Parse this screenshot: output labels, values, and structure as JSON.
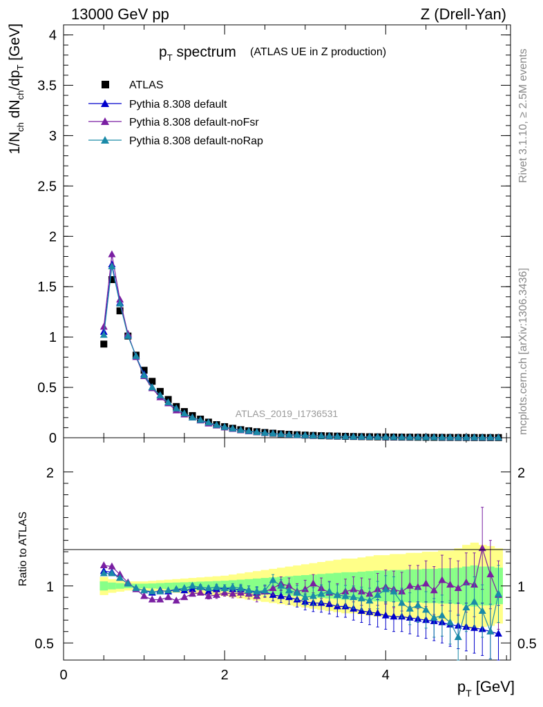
{
  "header": {
    "energy": "13000 GeV pp",
    "process": "Z (Drell-Yan)"
  },
  "side": {
    "rivet": "Rivet 3.1.10, ≥ 2.5M events",
    "source": "mcplots.cern.ch [arXiv:1306.3436]"
  },
  "analysis_id": "ATLAS_2019_I1736531",
  "colors": {
    "atlas": "#000000",
    "default": "#0000cc",
    "noFsr": "#7a1fa2",
    "noRap": "#1a8aa8",
    "band_outer": "#ffff88",
    "band_inner": "#88ff88"
  },
  "chart_data": [
    {
      "type": "scatter",
      "panel": "main",
      "title": "p_T spectrum",
      "subtitle": "(ATLAS UE in Z production)",
      "xlabel": "p_T [GeV]",
      "ylabel": "1/N_ch dN_ch/dp_T [GeV]",
      "xlim": [
        0,
        5.55
      ],
      "ylim": [
        0,
        4.1
      ],
      "yticks": [
        0,
        0.5,
        1,
        1.5,
        2,
        2.5,
        3,
        3.5,
        4
      ],
      "xticks": [
        0,
        2,
        4
      ],
      "legend_position": "top-left",
      "x": [
        0.5,
        0.6,
        0.7,
        0.8,
        0.9,
        1.0,
        1.1,
        1.2,
        1.3,
        1.4,
        1.5,
        1.6,
        1.7,
        1.8,
        1.9,
        2.0,
        2.1,
        2.2,
        2.3,
        2.4,
        2.5,
        2.6,
        2.7,
        2.8,
        2.9,
        3.0,
        3.1,
        3.2,
        3.3,
        3.4,
        3.5,
        3.6,
        3.7,
        3.8,
        3.9,
        4.0,
        4.1,
        4.2,
        4.3,
        4.4,
        4.5,
        4.6,
        4.7,
        4.8,
        4.9,
        5.0,
        5.1,
        5.2,
        5.3,
        5.4
      ],
      "series": [
        {
          "name": "ATLAS",
          "values": [
            0.93,
            1.57,
            1.26,
            1.01,
            0.82,
            0.67,
            0.56,
            0.46,
            0.38,
            0.31,
            0.26,
            0.22,
            0.185,
            0.155,
            0.13,
            0.11,
            0.094,
            0.08,
            0.069,
            0.06,
            0.052,
            0.045,
            0.039,
            0.034,
            0.03,
            0.026,
            0.023,
            0.02,
            0.018,
            0.016,
            0.014,
            0.0125,
            0.011,
            0.0098,
            0.0088,
            0.0078,
            0.007,
            0.0062,
            0.0056,
            0.005,
            0.0045,
            0.004,
            0.0036,
            0.0032,
            0.0029,
            0.0026,
            0.0023,
            0.0021,
            0.0019,
            0.0017
          ]
        },
        {
          "name": "Pythia 8.308 default",
          "values": [
            1.05,
            1.72,
            1.34,
            1.02,
            0.81,
            0.63,
            0.5,
            0.42,
            0.35,
            0.29,
            0.24,
            0.2,
            0.175,
            0.15,
            0.125,
            0.105,
            0.09,
            0.076,
            0.065,
            0.055,
            0.047,
            0.041,
            0.035,
            0.03,
            0.026,
            0.023,
            0.02,
            0.017,
            0.015,
            0.013,
            0.011,
            0.0098,
            0.0086,
            0.0076,
            0.0067,
            0.006,
            0.0053,
            0.0047,
            0.0042,
            0.0038,
            0.0034,
            0.003,
            0.0027,
            0.0024,
            0.0021,
            0.0019,
            0.0017,
            0.0015,
            0.0013,
            0.0012
          ]
        },
        {
          "name": "Pythia 8.308 default-noFsr",
          "values": [
            1.1,
            1.82,
            1.37,
            1.03,
            0.8,
            0.61,
            0.49,
            0.4,
            0.34,
            0.27,
            0.23,
            0.2,
            0.17,
            0.14,
            0.12,
            0.1,
            0.086,
            0.073,
            0.062,
            0.053,
            0.046,
            0.04,
            0.034,
            0.029,
            0.025,
            0.022,
            0.019,
            0.017,
            0.015,
            0.013,
            0.011,
            0.0097,
            0.0085,
            0.0075,
            0.0066,
            0.0059,
            0.0052,
            0.0046,
            0.0041,
            0.0037,
            0.0033,
            0.003,
            0.0027,
            0.0024,
            0.0021,
            0.0019,
            0.0017,
            0.0015,
            0.0014,
            0.0012
          ]
        },
        {
          "name": "Pythia 8.308 default-noRap",
          "values": [
            1.02,
            1.7,
            1.33,
            1.01,
            0.81,
            0.62,
            0.5,
            0.42,
            0.35,
            0.29,
            0.24,
            0.2,
            0.175,
            0.15,
            0.125,
            0.105,
            0.09,
            0.076,
            0.065,
            0.055,
            0.047,
            0.041,
            0.035,
            0.03,
            0.026,
            0.023,
            0.02,
            0.017,
            0.015,
            0.013,
            0.011,
            0.0098,
            0.0086,
            0.0076,
            0.0067,
            0.006,
            0.0053,
            0.0047,
            0.0042,
            0.0038,
            0.0034,
            0.003,
            0.0027,
            0.0024,
            0.0021,
            0.0019,
            0.0017,
            0.0015,
            0.0013,
            0.0012
          ]
        }
      ]
    },
    {
      "type": "line",
      "panel": "ratio",
      "ylabel": "Ratio to ATLAS",
      "xlabel": "p_T [GeV]",
      "xlim": [
        0,
        5.55
      ],
      "ylim": [
        0.35,
        2.3
      ],
      "yticks": [
        0.5,
        1,
        2
      ],
      "xticks": [
        0,
        2,
        4
      ],
      "x": [
        0.5,
        0.6,
        0.7,
        0.8,
        0.9,
        1.0,
        1.1,
        1.2,
        1.3,
        1.4,
        1.5,
        1.6,
        1.7,
        1.8,
        1.9,
        2.0,
        2.1,
        2.2,
        2.3,
        2.4,
        2.5,
        2.6,
        2.7,
        2.8,
        2.9,
        3.0,
        3.1,
        3.2,
        3.3,
        3.4,
        3.5,
        3.6,
        3.7,
        3.8,
        3.9,
        4.0,
        4.1,
        4.2,
        4.3,
        4.4,
        4.5,
        4.6,
        4.7,
        4.8,
        4.9,
        5.0,
        5.1,
        5.2,
        5.3,
        5.4
      ],
      "band_outer": [
        0.08,
        0.06,
        0.05,
        0.04,
        0.04,
        0.04,
        0.045,
        0.05,
        0.055,
        0.06,
        0.065,
        0.07,
        0.075,
        0.08,
        0.085,
        0.09,
        0.1,
        0.11,
        0.12,
        0.13,
        0.14,
        0.15,
        0.16,
        0.17,
        0.18,
        0.19,
        0.2,
        0.21,
        0.22,
        0.23,
        0.24,
        0.24,
        0.25,
        0.26,
        0.27,
        0.27,
        0.28,
        0.28,
        0.29,
        0.29,
        0.3,
        0.3,
        0.31,
        0.31,
        0.33,
        0.36,
        0.38,
        0.36,
        0.35,
        0.33
      ],
      "band_inner": [
        0.04,
        0.03,
        0.025,
        0.02,
        0.02,
        0.02,
        0.022,
        0.025,
        0.028,
        0.03,
        0.032,
        0.035,
        0.038,
        0.04,
        0.043,
        0.046,
        0.05,
        0.055,
        0.06,
        0.065,
        0.07,
        0.075,
        0.08,
        0.085,
        0.09,
        0.095,
        0.1,
        0.105,
        0.11,
        0.115,
        0.12,
        0.12,
        0.125,
        0.13,
        0.135,
        0.135,
        0.14,
        0.14,
        0.145,
        0.145,
        0.15,
        0.15,
        0.155,
        0.155,
        0.16,
        0.17,
        0.18,
        0.17,
        0.17,
        0.16
      ],
      "series": [
        {
          "name": "Pythia 8.308 default",
          "values": [
            1.13,
            1.12,
            1.07,
            1.02,
            0.98,
            0.96,
            0.94,
            0.96,
            0.95,
            0.97,
            0.96,
            0.97,
            0.99,
            0.95,
            0.97,
            0.98,
            0.97,
            0.97,
            0.96,
            0.94,
            0.95,
            0.92,
            0.91,
            0.9,
            0.88,
            0.86,
            0.85,
            0.85,
            0.84,
            0.82,
            0.82,
            0.8,
            0.78,
            0.77,
            0.76,
            0.74,
            0.73,
            0.73,
            0.72,
            0.71,
            0.7,
            0.69,
            0.68,
            0.66,
            0.65,
            0.64,
            0.63,
            0.62,
            0.6,
            0.58
          ],
          "errors": [
            0.01,
            0.01,
            0.01,
            0.01,
            0.01,
            0.01,
            0.01,
            0.01,
            0.01,
            0.015,
            0.015,
            0.02,
            0.02,
            0.02,
            0.025,
            0.03,
            0.03,
            0.035,
            0.04,
            0.045,
            0.05,
            0.05,
            0.055,
            0.06,
            0.065,
            0.07,
            0.075,
            0.08,
            0.085,
            0.09,
            0.095,
            0.1,
            0.1,
            0.11,
            0.12,
            0.12,
            0.13,
            0.13,
            0.14,
            0.15,
            0.16,
            0.17,
            0.18,
            0.19,
            0.2,
            0.21,
            0.22,
            0.23,
            0.24,
            0.25
          ]
        },
        {
          "name": "Pythia 8.308 default-noFsr",
          "values": [
            1.18,
            1.17,
            1.1,
            1.03,
            0.97,
            0.91,
            0.88,
            0.88,
            0.9,
            0.87,
            0.9,
            0.93,
            0.94,
            0.91,
            0.92,
            0.94,
            0.93,
            0.94,
            0.93,
            0.91,
            0.95,
            0.98,
            1.02,
            1.0,
            0.95,
            0.97,
            1.02,
            0.98,
            0.94,
            0.92,
            0.95,
            0.97,
            0.95,
            0.93,
            0.97,
            0.99,
            0.97,
            0.95,
            1.0,
            0.99,
            1.02,
            0.96,
            1.05,
            1.01,
            0.98,
            1.03,
            1.01,
            1.33,
            1.1,
            0.92
          ],
          "errors": [
            0.01,
            0.01,
            0.01,
            0.01,
            0.01,
            0.01,
            0.01,
            0.01,
            0.015,
            0.015,
            0.02,
            0.02,
            0.02,
            0.025,
            0.03,
            0.03,
            0.035,
            0.04,
            0.045,
            0.05,
            0.05,
            0.06,
            0.06,
            0.07,
            0.07,
            0.08,
            0.08,
            0.09,
            0.1,
            0.1,
            0.11,
            0.11,
            0.12,
            0.13,
            0.14,
            0.15,
            0.16,
            0.17,
            0.18,
            0.19,
            0.2,
            0.21,
            0.22,
            0.23,
            0.24,
            0.26,
            0.28,
            0.36,
            0.3,
            0.3
          ]
        },
        {
          "name": "Pythia 8.308 default-noRap",
          "values": [
            1.11,
            1.11,
            1.07,
            1.02,
            0.98,
            0.96,
            0.95,
            0.95,
            0.96,
            0.97,
            0.98,
            1.0,
            0.99,
            0.98,
            0.99,
            0.98,
            0.99,
            0.98,
            0.96,
            0.95,
            0.96,
            1.05,
            1.0,
            0.96,
            0.94,
            0.9,
            0.91,
            0.93,
            0.95,
            0.92,
            0.91,
            0.9,
            0.89,
            0.87,
            0.92,
            0.97,
            0.95,
            0.85,
            0.8,
            0.83,
            0.79,
            0.72,
            0.74,
            0.68,
            0.55,
            0.81,
            0.86,
            0.78,
            0.6,
            0.93
          ],
          "errors": [
            0.01,
            0.01,
            0.01,
            0.01,
            0.01,
            0.01,
            0.01,
            0.01,
            0.01,
            0.015,
            0.015,
            0.02,
            0.02,
            0.02,
            0.025,
            0.03,
            0.03,
            0.035,
            0.04,
            0.045,
            0.05,
            0.05,
            0.055,
            0.06,
            0.065,
            0.07,
            0.075,
            0.08,
            0.085,
            0.09,
            0.095,
            0.1,
            0.1,
            0.11,
            0.12,
            0.12,
            0.13,
            0.13,
            0.14,
            0.15,
            0.16,
            0.17,
            0.18,
            0.19,
            0.2,
            0.21,
            0.22,
            0.23,
            0.24,
            0.25
          ]
        }
      ]
    }
  ]
}
